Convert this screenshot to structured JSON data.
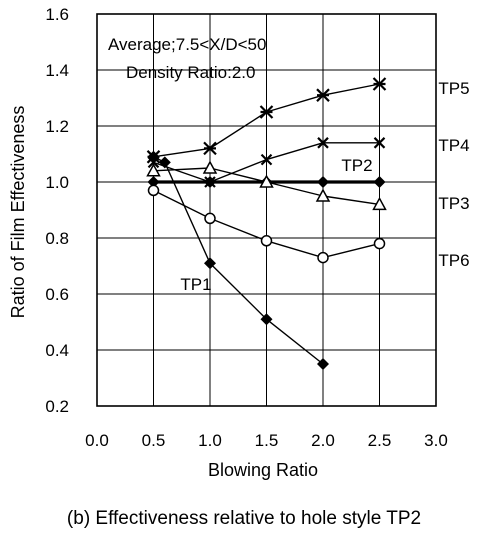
{
  "chart_data": {
    "type": "line",
    "title": "",
    "xlabel": "Blowing Ratio",
    "ylabel": "Ratio of Film Effectiveness",
    "xlim": [
      0.0,
      3.0
    ],
    "ylim": [
      0.2,
      1.6
    ],
    "xticks": [
      "0.0",
      "0.5",
      "1.0",
      "1.5",
      "2.0",
      "2.5",
      "3.0"
    ],
    "yticks": [
      "0.2",
      "0.4",
      "0.6",
      "0.8",
      "1.0",
      "1.2",
      "1.4",
      "1.6"
    ],
    "grid": true,
    "annotations": [
      "Average;7.5<X/D<50",
      "Density Ratio:2.0"
    ],
    "caption": "(b) Effectiveness relative to hole style TP2",
    "series": [
      {
        "name": "TP5",
        "marker": "x-star",
        "x": [
          0.5,
          1.0,
          1.5,
          2.0,
          2.5
        ],
        "y": [
          1.09,
          1.12,
          1.25,
          1.31,
          1.35
        ]
      },
      {
        "name": "TP4",
        "marker": "x",
        "x": [
          0.5,
          1.0,
          1.5,
          2.0,
          2.5
        ],
        "y": [
          1.07,
          1.0,
          1.08,
          1.14,
          1.14
        ]
      },
      {
        "name": "TP2",
        "marker": "diamond-filled",
        "x": [
          0.5,
          1.0,
          1.5,
          2.0,
          2.5
        ],
        "y": [
          1.0,
          1.0,
          1.0,
          1.0,
          1.0
        ]
      },
      {
        "name": "TP3",
        "marker": "triangle-open",
        "x": [
          0.5,
          1.0,
          1.5,
          2.0,
          2.5
        ],
        "y": [
          1.04,
          1.05,
          1.0,
          0.95,
          0.92
        ]
      },
      {
        "name": "TP6",
        "marker": "circle-open",
        "x": [
          0.5,
          1.0,
          1.5,
          2.0,
          2.5
        ],
        "y": [
          0.97,
          0.87,
          0.79,
          0.73,
          0.78
        ]
      },
      {
        "name": "TP1",
        "marker": "diamond-filled",
        "x": [
          0.5,
          0.6,
          1.0,
          1.5,
          2.0
        ],
        "y": [
          1.09,
          1.07,
          0.71,
          0.51,
          0.35
        ]
      }
    ]
  }
}
